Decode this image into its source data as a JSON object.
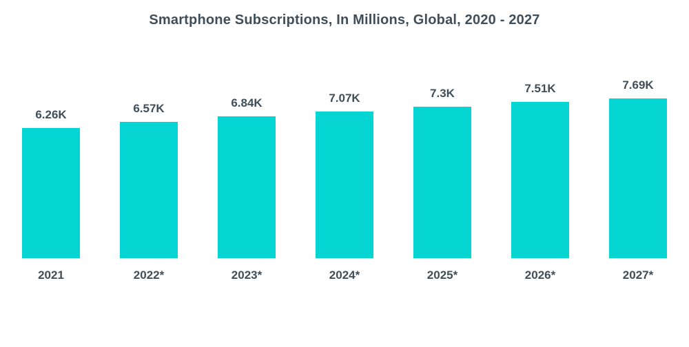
{
  "title": "Smartphone Subscriptions, In Millions, Global, 2020 - 2027",
  "chart_data": {
    "type": "bar",
    "title": "Smartphone Subscriptions, In Millions, Global, 2020 - 2027",
    "categories": [
      "2021",
      "2022*",
      "2023*",
      "2024*",
      "2025*",
      "2026*",
      "2027*"
    ],
    "values": [
      6.26,
      6.57,
      6.84,
      7.07,
      7.3,
      7.51,
      7.69
    ],
    "value_labels": [
      "6.26K",
      "6.57K",
      "6.84K",
      "7.07K",
      "7.3K",
      "7.51K",
      "7.69K"
    ],
    "unit": "K",
    "xlabel": "",
    "ylabel": "",
    "ylim": [
      0,
      7.69
    ],
    "grid": false,
    "legend": "none",
    "bar_color": "#05d5d2",
    "text_color": "#3f4e58",
    "background_color": "#ffffff"
  }
}
